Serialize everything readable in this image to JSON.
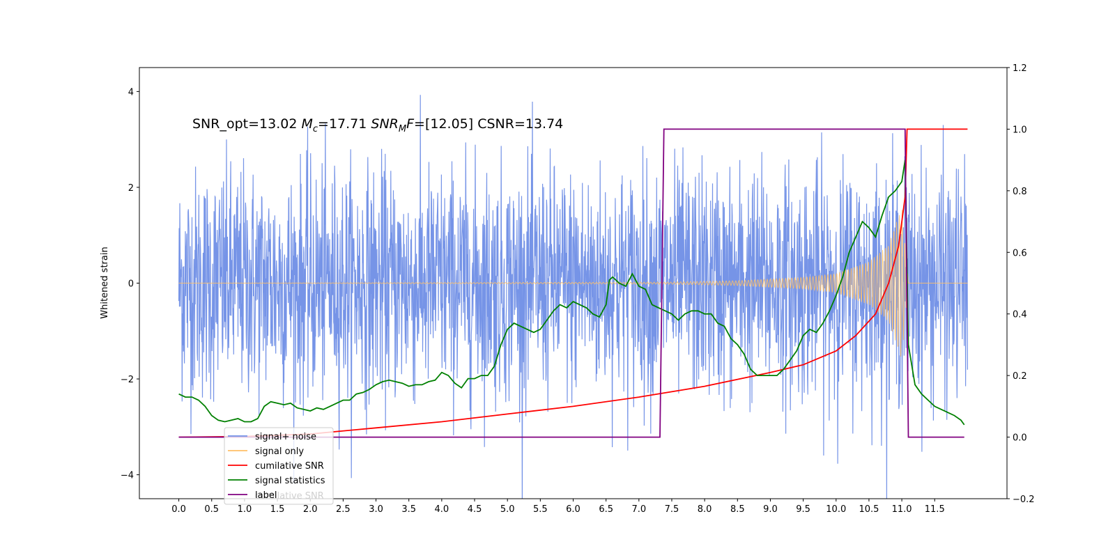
{
  "chart_data": {
    "type": "line",
    "annotation": {
      "prefix": "SNR_opt=13.02 ",
      "mc_symbol": "M",
      "mc_subscript": "c",
      "mc_value": "=17.71  ",
      "mf_symbol": "SNR",
      "mf_subscript": "M",
      "mf_tail": "F",
      "mf_value": "=[12.05] CSNR=13.74"
    },
    "ylabel_left": "Whitened strain",
    "x_ticks": [
      "0.0",
      "0.5",
      "1.0",
      "1.5",
      "2.0",
      "2.5",
      "3.0",
      "3.5",
      "4.0",
      "4.5",
      "5.0",
      "5.5",
      "6.0",
      "6.5",
      "7.0",
      "7.5",
      "8.0",
      "8.5",
      "9.0",
      "9.5",
      "10.0",
      "10.5",
      "11.0",
      "11.5"
    ],
    "xlim": [
      -0.6,
      12.6
    ],
    "y_left_ticks": [
      "−4",
      "−2",
      "0",
      "2",
      "4"
    ],
    "ylim_left": [
      -4.5,
      4.5
    ],
    "y_right_ticks": [
      "−0.2",
      "0.0",
      "0.2",
      "0.4",
      "0.6",
      "0.8",
      "1.0",
      "1.2"
    ],
    "ylim_right": [
      -0.2,
      1.2
    ],
    "legend": {
      "placement": "lower-left",
      "entries": [
        {
          "label": "signal+ noise",
          "color": "#6f8ee6"
        },
        {
          "label": "signal only",
          "color": "#ffbf66"
        },
        {
          "label": "cumilative SNR",
          "color": "#ff0000"
        },
        {
          "label": "signal statistics",
          "color": "#008000"
        },
        {
          "label": "label",
          "color": "#800080"
        }
      ],
      "ghost_text": "cumilative SNR"
    },
    "series": [
      {
        "name": "signal+ noise",
        "axis": "left",
        "color": "#6f8ee6",
        "style": "noise",
        "x_range": [
          0,
          12.0
        ],
        "spread": 1.2
      },
      {
        "name": "signal only",
        "axis": "left",
        "color": "#ffbf66",
        "style": "chirp",
        "x_range": [
          0,
          12.0
        ],
        "envelope": {
          "x": [
            0,
            7.4,
            8.5,
            9.5,
            10.0,
            10.5,
            10.8,
            11.0,
            11.1
          ],
          "amp": [
            0,
            0.02,
            0.05,
            0.12,
            0.2,
            0.45,
            0.8,
            1.6,
            0
          ]
        }
      },
      {
        "name": "cumilative SNR",
        "axis": "right",
        "color": "#ff0000",
        "points": [
          [
            0,
            0
          ],
          [
            1.0,
            0.002
          ],
          [
            2.0,
            0.01
          ],
          [
            3.0,
            0.03
          ],
          [
            4.0,
            0.05
          ],
          [
            5.0,
            0.075
          ],
          [
            6.0,
            0.1
          ],
          [
            7.0,
            0.13
          ],
          [
            8.0,
            0.165
          ],
          [
            9.0,
            0.21
          ],
          [
            9.5,
            0.235
          ],
          [
            10.0,
            0.28
          ],
          [
            10.3,
            0.33
          ],
          [
            10.6,
            0.4
          ],
          [
            10.8,
            0.5
          ],
          [
            10.95,
            0.62
          ],
          [
            11.05,
            0.78
          ],
          [
            11.08,
            1.0
          ],
          [
            12.0,
            1.0
          ]
        ]
      },
      {
        "name": "signal statistics",
        "axis": "right",
        "color": "#008000",
        "points": [
          [
            0,
            0.14
          ],
          [
            0.1,
            0.13
          ],
          [
            0.2,
            0.13
          ],
          [
            0.3,
            0.12
          ],
          [
            0.4,
            0.1
          ],
          [
            0.5,
            0.07
          ],
          [
            0.6,
            0.055
          ],
          [
            0.7,
            0.05
          ],
          [
            0.8,
            0.055
          ],
          [
            0.9,
            0.06
          ],
          [
            1.0,
            0.05
          ],
          [
            1.1,
            0.05
          ],
          [
            1.2,
            0.06
          ],
          [
            1.3,
            0.1
          ],
          [
            1.4,
            0.115
          ],
          [
            1.5,
            0.11
          ],
          [
            1.6,
            0.105
          ],
          [
            1.7,
            0.11
          ],
          [
            1.8,
            0.095
          ],
          [
            1.9,
            0.09
          ],
          [
            2.0,
            0.085
          ],
          [
            2.1,
            0.095
          ],
          [
            2.2,
            0.09
          ],
          [
            2.3,
            0.1
          ],
          [
            2.4,
            0.11
          ],
          [
            2.5,
            0.12
          ],
          [
            2.6,
            0.12
          ],
          [
            2.7,
            0.14
          ],
          [
            2.8,
            0.145
          ],
          [
            2.9,
            0.155
          ],
          [
            3.0,
            0.17
          ],
          [
            3.1,
            0.18
          ],
          [
            3.2,
            0.185
          ],
          [
            3.3,
            0.18
          ],
          [
            3.4,
            0.175
          ],
          [
            3.5,
            0.165
          ],
          [
            3.6,
            0.17
          ],
          [
            3.7,
            0.17
          ],
          [
            3.8,
            0.18
          ],
          [
            3.9,
            0.185
          ],
          [
            4.0,
            0.21
          ],
          [
            4.1,
            0.2
          ],
          [
            4.2,
            0.175
          ],
          [
            4.3,
            0.16
          ],
          [
            4.4,
            0.19
          ],
          [
            4.5,
            0.19
          ],
          [
            4.6,
            0.2
          ],
          [
            4.7,
            0.2
          ],
          [
            4.8,
            0.23
          ],
          [
            4.9,
            0.3
          ],
          [
            5.0,
            0.35
          ],
          [
            5.1,
            0.37
          ],
          [
            5.2,
            0.36
          ],
          [
            5.3,
            0.35
          ],
          [
            5.4,
            0.34
          ],
          [
            5.5,
            0.35
          ],
          [
            5.6,
            0.38
          ],
          [
            5.7,
            0.41
          ],
          [
            5.8,
            0.43
          ],
          [
            5.9,
            0.42
          ],
          [
            6.0,
            0.44
          ],
          [
            6.1,
            0.43
          ],
          [
            6.2,
            0.42
          ],
          [
            6.3,
            0.4
          ],
          [
            6.4,
            0.39
          ],
          [
            6.5,
            0.43
          ],
          [
            6.55,
            0.51
          ],
          [
            6.6,
            0.52
          ],
          [
            6.7,
            0.5
          ],
          [
            6.8,
            0.49
          ],
          [
            6.9,
            0.53
          ],
          [
            7.0,
            0.49
          ],
          [
            7.1,
            0.48
          ],
          [
            7.2,
            0.43
          ],
          [
            7.3,
            0.42
          ],
          [
            7.4,
            0.41
          ],
          [
            7.5,
            0.4
          ],
          [
            7.6,
            0.38
          ],
          [
            7.7,
            0.4
          ],
          [
            7.8,
            0.41
          ],
          [
            7.9,
            0.41
          ],
          [
            8.0,
            0.4
          ],
          [
            8.1,
            0.4
          ],
          [
            8.2,
            0.37
          ],
          [
            8.3,
            0.36
          ],
          [
            8.4,
            0.32
          ],
          [
            8.5,
            0.3
          ],
          [
            8.6,
            0.27
          ],
          [
            8.7,
            0.22
          ],
          [
            8.8,
            0.2
          ],
          [
            8.9,
            0.2
          ],
          [
            9.0,
            0.2
          ],
          [
            9.1,
            0.2
          ],
          [
            9.2,
            0.22
          ],
          [
            9.3,
            0.25
          ],
          [
            9.4,
            0.28
          ],
          [
            9.5,
            0.33
          ],
          [
            9.6,
            0.35
          ],
          [
            9.7,
            0.34
          ],
          [
            9.8,
            0.37
          ],
          [
            9.9,
            0.41
          ],
          [
            10.0,
            0.46
          ],
          [
            10.1,
            0.52
          ],
          [
            10.2,
            0.6
          ],
          [
            10.3,
            0.65
          ],
          [
            10.4,
            0.7
          ],
          [
            10.5,
            0.68
          ],
          [
            10.6,
            0.65
          ],
          [
            10.7,
            0.72
          ],
          [
            10.8,
            0.78
          ],
          [
            10.9,
            0.8
          ],
          [
            11.0,
            0.83
          ],
          [
            11.05,
            0.9
          ],
          [
            11.1,
            0.3
          ],
          [
            11.2,
            0.17
          ],
          [
            11.3,
            0.14
          ],
          [
            11.4,
            0.12
          ],
          [
            11.5,
            0.1
          ],
          [
            11.6,
            0.09
          ],
          [
            11.7,
            0.08
          ],
          [
            11.8,
            0.07
          ],
          [
            11.9,
            0.055
          ],
          [
            11.95,
            0.04
          ]
        ]
      },
      {
        "name": "label",
        "axis": "right",
        "color": "#800080",
        "points": [
          [
            -0.001,
            0
          ],
          [
            7.32,
            0
          ],
          [
            7.38,
            1
          ],
          [
            11.05,
            1
          ],
          [
            11.1,
            0
          ],
          [
            11.95,
            0
          ]
        ]
      }
    ]
  }
}
